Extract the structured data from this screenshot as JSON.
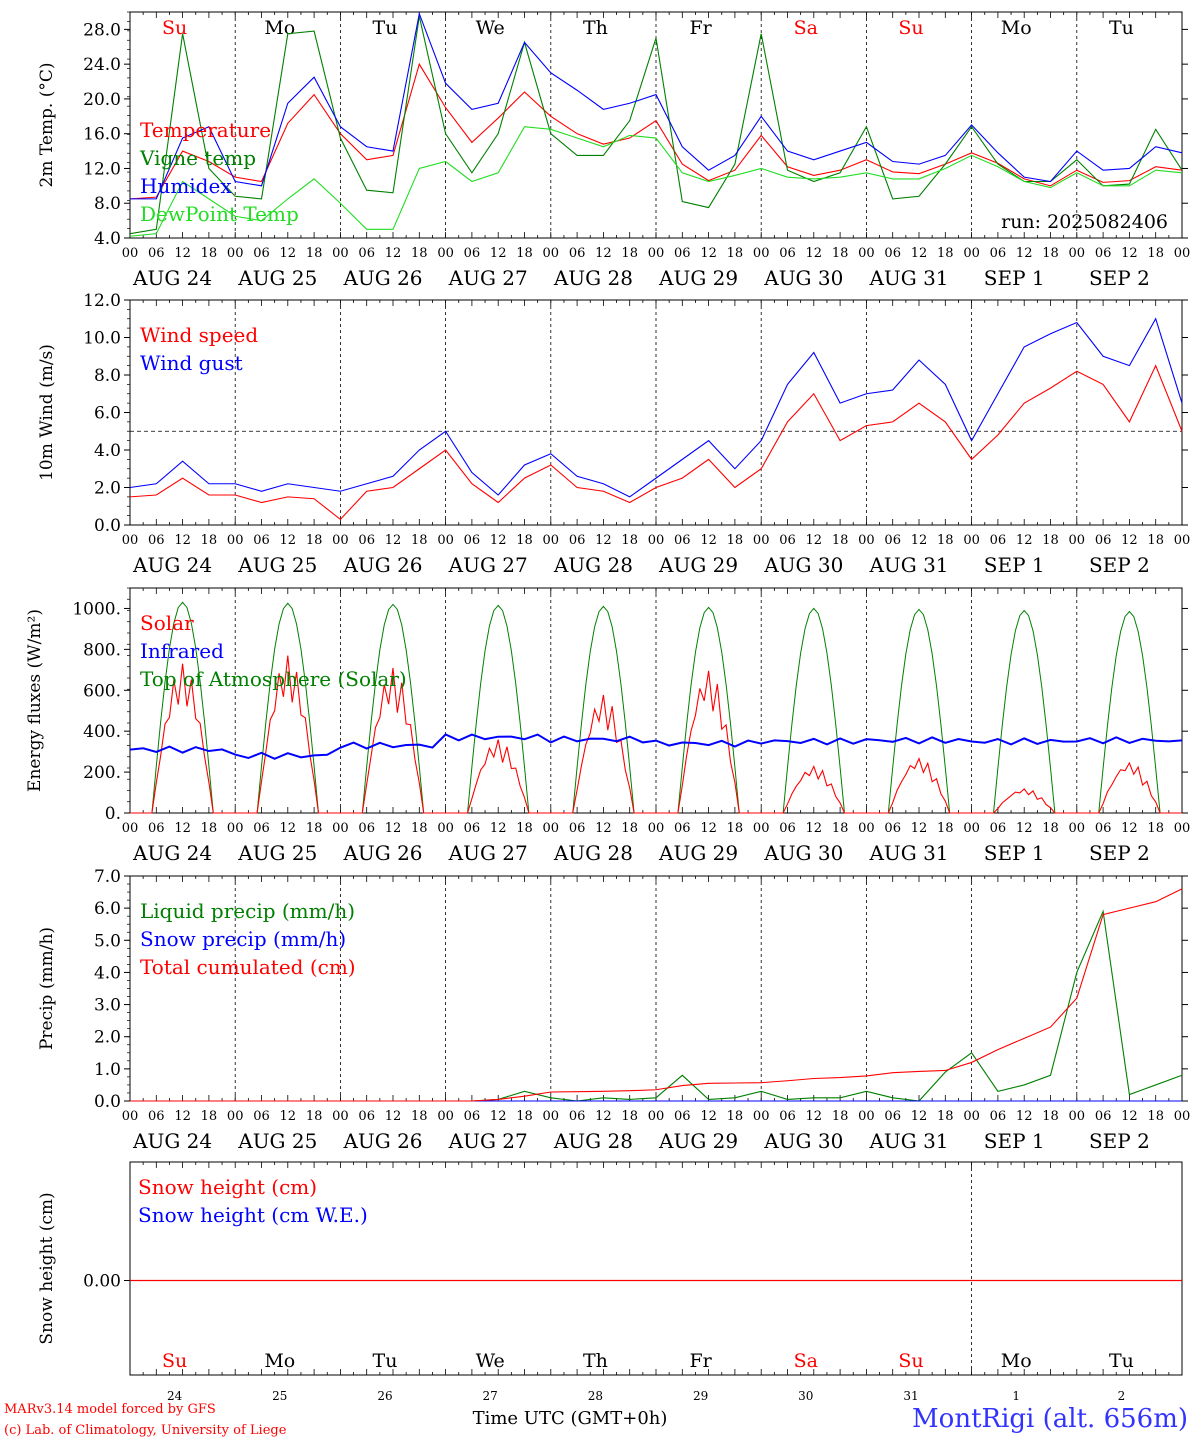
{
  "colors": {
    "red": "#ff0000",
    "green": "#008000",
    "blue": "#0000ff",
    "lime": "#22dd22",
    "axis": "#000000",
    "station": "#3333ff"
  },
  "days": {
    "labels": [
      "AUG 24",
      "AUG 25",
      "AUG 26",
      "AUG 27",
      "AUG 28",
      "AUG 29",
      "AUG 30",
      "AUG 31",
      "SEP  1",
      "SEP  2"
    ],
    "weekdays": [
      "Su",
      "Mo",
      "Tu",
      "We",
      "Th",
      "Fr",
      "Sa",
      "Su",
      "Mo",
      "Tu"
    ],
    "weekend": [
      true,
      false,
      false,
      false,
      false,
      false,
      true,
      true,
      false,
      false
    ],
    "numbers": [
      "24",
      "25",
      "26",
      "27",
      "28",
      "29",
      "30",
      "31",
      "1",
      "2"
    ],
    "hours": [
      "00",
      "06",
      "12",
      "18"
    ],
    "final_hour": "00"
  },
  "footer": {
    "model": "MARv3.14 model forced by GFS",
    "copyright": "(c) Lab. of Climatology, University of Liege",
    "time_label": "Time UTC (GMT+0h)",
    "station": "MontRigi (alt. 656m)"
  },
  "chart_data": [
    {
      "type": "line",
      "title": "",
      "ylabel": "2m Temp. (°C)",
      "ylim": [
        4.0,
        30.0
      ],
      "yticks": [
        "4.0",
        "8.0",
        "12.0",
        "16.0",
        "20.0",
        "24.0",
        "28.0"
      ],
      "xlabel": "Time UTC (GMT+0h)",
      "annotation": "run: 2025082406",
      "x_hours": [
        0,
        6,
        12,
        18,
        24,
        30,
        36,
        42,
        48,
        54,
        60,
        66,
        72,
        78,
        84,
        90,
        96,
        102,
        108,
        114,
        120,
        126,
        132,
        138,
        144,
        150,
        156,
        162,
        168,
        174,
        180,
        186,
        192,
        198,
        204,
        210,
        216,
        222,
        228,
        234,
        240
      ],
      "series": [
        {
          "name": "Temperature",
          "color": "#ff0000",
          "values": [
            8.5,
            8.7,
            14.0,
            12.8,
            11.0,
            10.5,
            17.2,
            20.5,
            16.0,
            13.0,
            13.5,
            24.0,
            19.0,
            15.0,
            17.8,
            20.8,
            18.0,
            16.0,
            14.8,
            15.5,
            17.5,
            12.5,
            10.6,
            11.8,
            15.8,
            12.2,
            11.2,
            11.8,
            13.0,
            11.6,
            11.4,
            12.5,
            13.8,
            12.6,
            10.8,
            10.0,
            11.8,
            10.4,
            10.6,
            12.2,
            11.8
          ]
        },
        {
          "name": "Vigne temp",
          "color": "#008000",
          "values": [
            4.5,
            5.0,
            27.5,
            12.0,
            8.8,
            8.5,
            27.5,
            27.8,
            15.5,
            9.5,
            9.2,
            29.5,
            16.0,
            11.5,
            16.0,
            26.5,
            16.0,
            13.5,
            13.5,
            17.5,
            27.0,
            8.2,
            7.5,
            12.5,
            27.5,
            11.8,
            10.5,
            11.5,
            16.8,
            8.5,
            8.8,
            12.5,
            16.8,
            12.5,
            10.5,
            10.5,
            13.0,
            10.0,
            10.2,
            16.5,
            11.8
          ]
        },
        {
          "name": "Humidex",
          "color": "#0000ff",
          "values": [
            8.5,
            8.5,
            15.5,
            16.8,
            10.5,
            10.0,
            19.5,
            22.5,
            16.8,
            14.5,
            14.0,
            29.8,
            21.8,
            18.8,
            19.5,
            26.5,
            23.0,
            21.0,
            18.8,
            19.5,
            20.5,
            14.5,
            11.8,
            13.5,
            18.0,
            14.0,
            13.0,
            14.0,
            15.0,
            12.8,
            12.5,
            13.5,
            17.0,
            13.8,
            11.0,
            10.5,
            14.0,
            11.8,
            12.0,
            14.5,
            13.8
          ]
        },
        {
          "name": "DewPoint Temp",
          "color": "#22dd22",
          "values": [
            4.2,
            4.5,
            10.5,
            8.5,
            6.5,
            6.0,
            8.5,
            10.8,
            8.0,
            5.0,
            5.0,
            12.0,
            12.8,
            10.5,
            11.5,
            16.8,
            16.5,
            15.5,
            14.5,
            15.8,
            15.5,
            11.5,
            10.5,
            11.2,
            12.0,
            11.0,
            10.8,
            11.0,
            11.5,
            10.8,
            10.8,
            12.0,
            13.5,
            12.2,
            10.5,
            9.8,
            11.5,
            10.0,
            10.0,
            11.8,
            11.5
          ]
        }
      ]
    },
    {
      "type": "line",
      "title": "",
      "ylabel": "10m Wind (m/s)",
      "ylim": [
        0.0,
        12.0
      ],
      "yticks": [
        "0.0",
        "2.0",
        "4.0",
        "6.0",
        "8.0",
        "10.0",
        "12.0"
      ],
      "threshold": 5.0,
      "x_hours": [
        0,
        6,
        12,
        18,
        24,
        30,
        36,
        42,
        48,
        54,
        60,
        66,
        72,
        78,
        84,
        90,
        96,
        102,
        108,
        114,
        120,
        126,
        132,
        138,
        144,
        150,
        156,
        162,
        168,
        174,
        180,
        186,
        192,
        198,
        204,
        210,
        216,
        222,
        228,
        234,
        240
      ],
      "series": [
        {
          "name": "Wind speed",
          "color": "#ff0000",
          "values": [
            1.5,
            1.6,
            2.5,
            1.6,
            1.6,
            1.2,
            1.5,
            1.4,
            0.3,
            1.8,
            2.0,
            3.0,
            4.0,
            2.2,
            1.2,
            2.5,
            3.2,
            2.0,
            1.8,
            1.2,
            2.0,
            2.5,
            3.5,
            2.0,
            3.0,
            5.5,
            7.0,
            4.5,
            5.3,
            5.5,
            6.5,
            5.5,
            3.5,
            4.8,
            6.5,
            7.3,
            8.2,
            7.5,
            5.5,
            8.5,
            5.0
          ]
        },
        {
          "name": "Wind gust",
          "color": "#0000ff",
          "values": [
            2.0,
            2.2,
            3.4,
            2.2,
            2.2,
            1.8,
            2.2,
            2.0,
            1.8,
            2.2,
            2.6,
            4.0,
            5.0,
            2.8,
            1.6,
            3.2,
            3.8,
            2.6,
            2.2,
            1.5,
            2.5,
            3.5,
            4.5,
            3.0,
            4.5,
            7.5,
            9.2,
            6.5,
            7.0,
            7.2,
            8.8,
            7.5,
            4.5,
            7.0,
            9.5,
            10.2,
            10.8,
            9.0,
            8.5,
            11.0,
            6.5
          ]
        }
      ]
    },
    {
      "type": "line",
      "title": "",
      "ylabel": "Energy fluxes (W/m²)",
      "ylim": [
        0,
        1100
      ],
      "yticks": [
        "0.",
        "200.",
        "400.",
        "600.",
        "800.",
        "1000."
      ],
      "series": [
        {
          "name": "Solar",
          "color": "#ff0000",
          "daily_peaks": [
            730,
            770,
            710,
            360,
            580,
            700,
            230,
            270,
            120,
            250
          ]
        },
        {
          "name": "Infrared",
          "color": "#0000ff",
          "daily_levels": [
            310,
            280,
            330,
            370,
            360,
            340,
            350,
            355,
            350,
            355
          ]
        },
        {
          "name": "Top of Atmosphere (Solar)",
          "color": "#008000",
          "daily_peaks": [
            1030,
            1025,
            1020,
            1015,
            1010,
            1005,
            1000,
            995,
            990,
            985
          ]
        }
      ]
    },
    {
      "type": "line",
      "title": "",
      "ylabel": "Precip (mm/h)",
      "ylim": [
        0.0,
        7.0
      ],
      "yticks": [
        "0.0",
        "1.0",
        "2.0",
        "3.0",
        "4.0",
        "5.0",
        "6.0",
        "7.0"
      ],
      "x_hours": [
        0,
        6,
        12,
        18,
        24,
        30,
        36,
        42,
        48,
        54,
        60,
        66,
        72,
        78,
        84,
        90,
        96,
        102,
        108,
        114,
        120,
        126,
        132,
        138,
        144,
        150,
        156,
        162,
        168,
        174,
        180,
        186,
        192,
        198,
        204,
        210,
        216,
        222,
        228,
        234,
        240
      ],
      "series": [
        {
          "name": "Liquid precip (mm/h)",
          "color": "#008000",
          "values": [
            0,
            0,
            0,
            0,
            0,
            0,
            0,
            0,
            0,
            0,
            0,
            0,
            0,
            0,
            0.05,
            0.3,
            0.1,
            0,
            0.1,
            0.05,
            0.1,
            0.8,
            0.05,
            0.1,
            0.3,
            0.05,
            0.1,
            0.1,
            0.3,
            0.1,
            0,
            0.9,
            1.5,
            0.3,
            0.5,
            0.8,
            4.0,
            5.9,
            0.2,
            0.5,
            0.8
          ]
        },
        {
          "name": "Snow precip (mm/h)",
          "color": "#0000ff",
          "values": [
            0,
            0,
            0,
            0,
            0,
            0,
            0,
            0,
            0,
            0,
            0,
            0,
            0,
            0,
            0,
            0,
            0,
            0,
            0,
            0,
            0,
            0,
            0,
            0,
            0,
            0,
            0,
            0,
            0,
            0,
            0,
            0,
            0,
            0,
            0,
            0,
            0,
            0,
            0,
            0,
            0
          ]
        },
        {
          "name": "Total cumulated (cm)",
          "color": "#ff0000",
          "values": [
            0,
            0,
            0,
            0,
            0,
            0,
            0,
            0,
            0,
            0,
            0,
            0,
            0,
            0,
            0.05,
            0.15,
            0.28,
            0.29,
            0.3,
            0.32,
            0.35,
            0.48,
            0.55,
            0.56,
            0.57,
            0.63,
            0.7,
            0.73,
            0.78,
            0.88,
            0.92,
            0.95,
            1.2,
            1.6,
            1.95,
            2.3,
            3.2,
            5.8,
            6.0,
            6.2,
            6.6
          ]
        }
      ]
    },
    {
      "type": "line",
      "title": "",
      "ylabel": "Snow height (cm)",
      "yticks": [
        "0.00"
      ],
      "series": [
        {
          "name": "Snow height (cm)",
          "color": "#ff0000",
          "values": [
            0,
            0
          ]
        },
        {
          "name": "Snow height (cm W.E.)",
          "color": "#0000ff",
          "values": [
            0,
            0
          ]
        }
      ]
    }
  ]
}
